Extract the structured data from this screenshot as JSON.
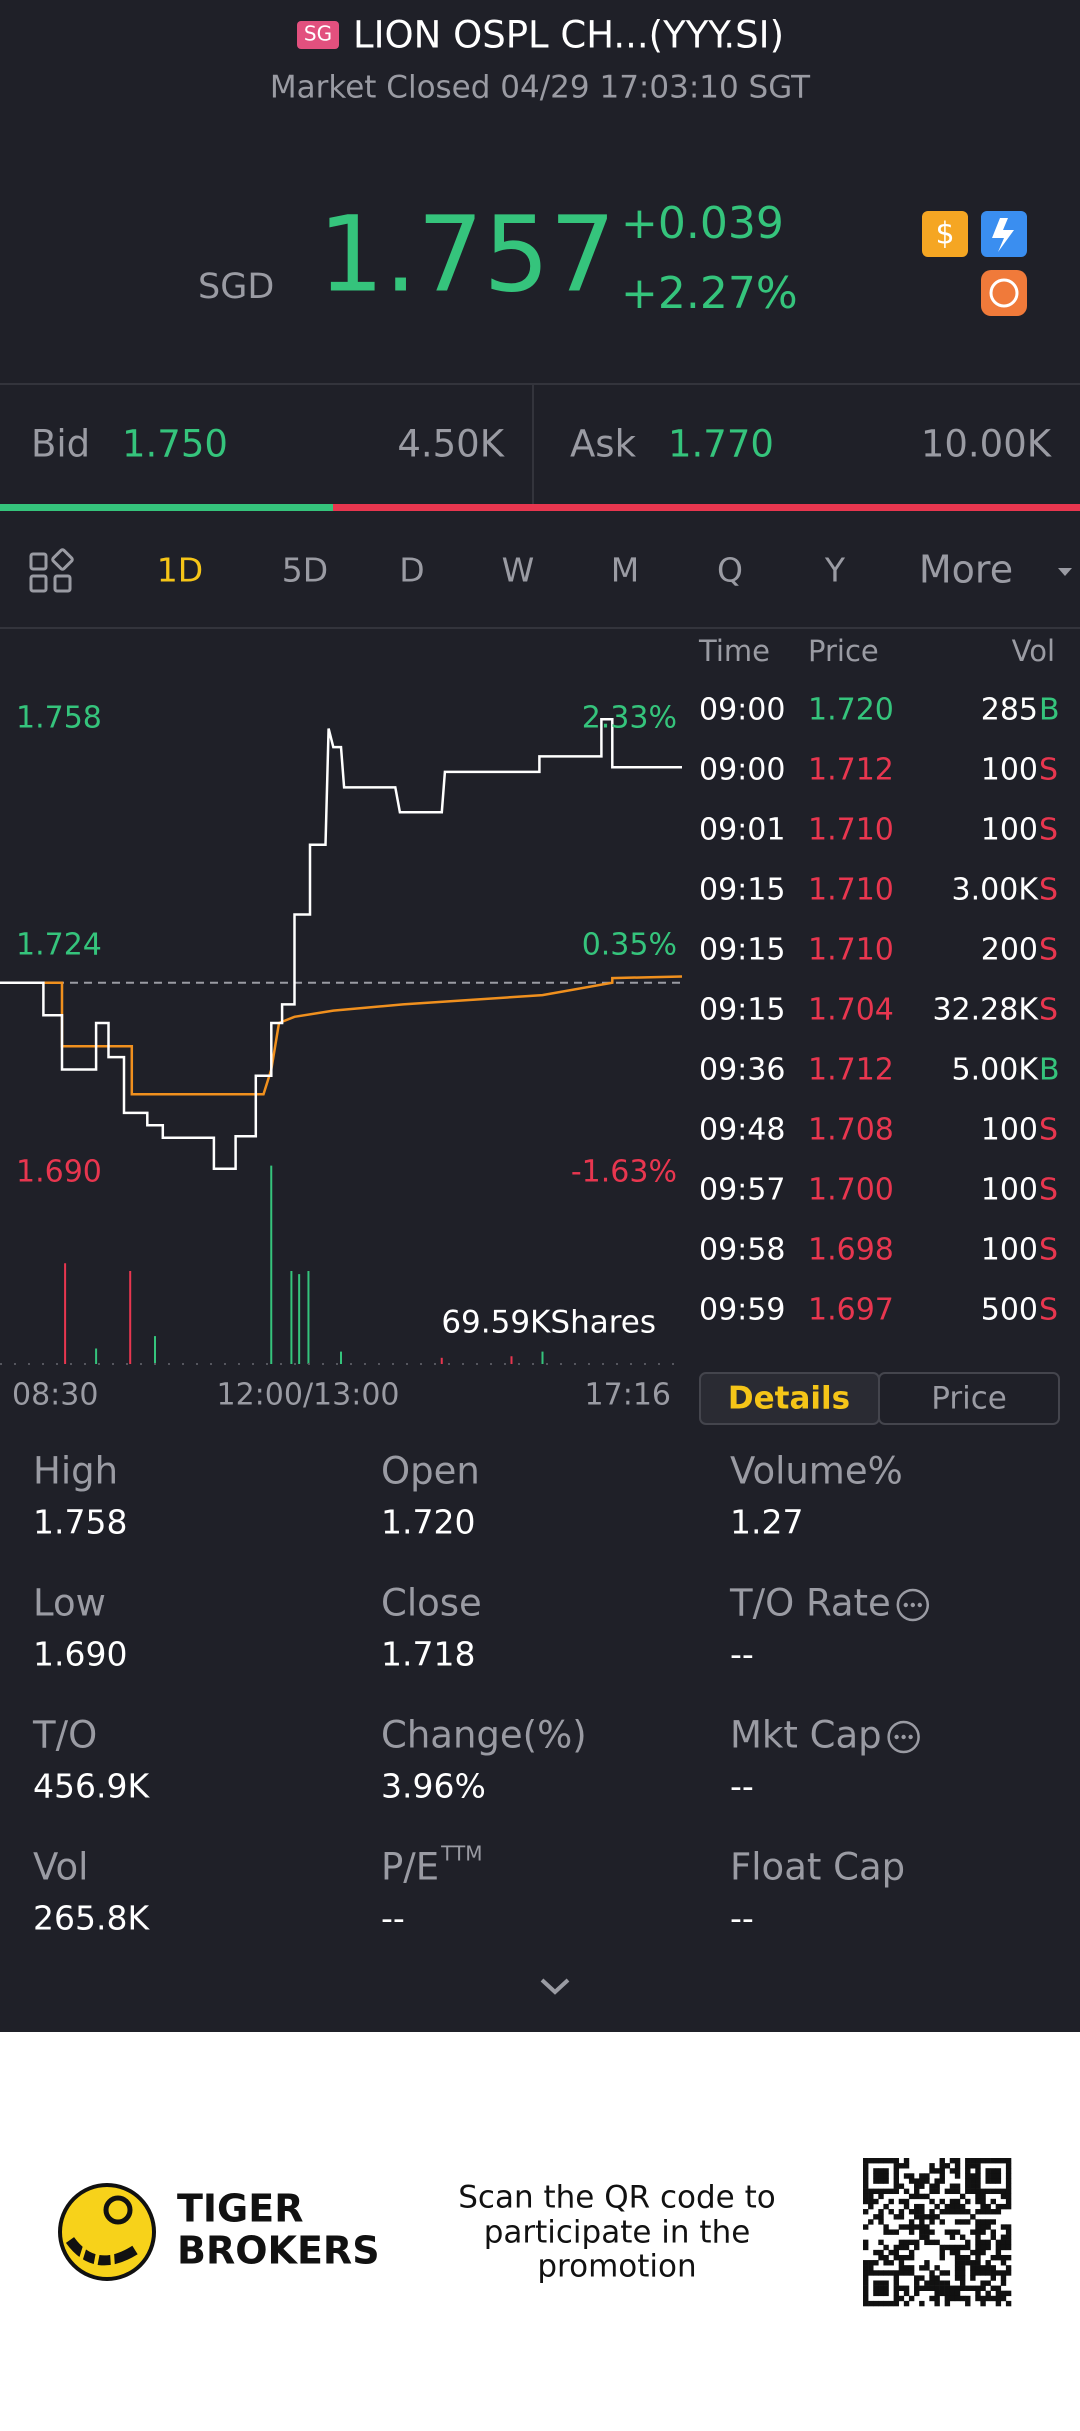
{
  "header": {
    "badge": "SG",
    "title": "LION OSPL CH...(YYY.SI)",
    "subtitle": "Market Closed 04/29 17:03:10 SGT"
  },
  "quote": {
    "currency": "SGD",
    "price": "1.757",
    "change": "+0.039",
    "change_pct": "+2.27%"
  },
  "bid": {
    "label": "Bid",
    "price": "1.750",
    "size": "4.50K"
  },
  "ask": {
    "label": "Ask",
    "price": "1.770",
    "size": "10.00K"
  },
  "tabs": [
    "1D",
    "5D",
    "D",
    "W",
    "M",
    "Q",
    "Y",
    "More"
  ],
  "chart": {
    "price_high": "1.758",
    "pct_high": "2.33%",
    "price_mid": "1.724",
    "pct_mid": "0.35%",
    "price_low": "1.690",
    "pct_low": "-1.63%",
    "volume": "69.59KShares",
    "x_labels": [
      "08:30",
      "12:00/13:00",
      "17:16"
    ]
  },
  "trades": {
    "headers": [
      "Time",
      "Price",
      "Vol"
    ],
    "rows": [
      {
        "time": "09:00",
        "price": "1.720",
        "vol": "285",
        "side": "B",
        "price_color": "#35c47c"
      },
      {
        "time": "09:00",
        "price": "1.712",
        "vol": "100",
        "side": "S",
        "price_color": "#e8364f"
      },
      {
        "time": "09:01",
        "price": "1.710",
        "vol": "100",
        "side": "S",
        "price_color": "#e8364f"
      },
      {
        "time": "09:15",
        "price": "1.710",
        "vol": "3.00K",
        "side": "S",
        "price_color": "#e8364f"
      },
      {
        "time": "09:15",
        "price": "1.710",
        "vol": "200",
        "side": "S",
        "price_color": "#e8364f"
      },
      {
        "time": "09:15",
        "price": "1.704",
        "vol": "32.28K",
        "side": "S",
        "price_color": "#e8364f"
      },
      {
        "time": "09:36",
        "price": "1.712",
        "vol": "5.00K",
        "side": "B",
        "price_color": "#e8364f"
      },
      {
        "time": "09:48",
        "price": "1.708",
        "vol": "100",
        "side": "S",
        "price_color": "#e8364f"
      },
      {
        "time": "09:57",
        "price": "1.700",
        "vol": "100",
        "side": "S",
        "price_color": "#e8364f"
      },
      {
        "time": "09:58",
        "price": "1.698",
        "vol": "100",
        "side": "S",
        "price_color": "#e8364f"
      },
      {
        "time": "09:59",
        "price": "1.697",
        "vol": "500",
        "side": "S",
        "price_color": "#e8364f"
      }
    ]
  },
  "buttons": [
    "Details",
    "Price"
  ],
  "stats": [
    {
      "label": "High",
      "value": "1.758"
    },
    {
      "label": "Open",
      "value": "1.720"
    },
    {
      "label": "Volume%",
      "value": "1.27"
    },
    {
      "label": "Low",
      "value": "1.690"
    },
    {
      "label": "Close",
      "value": "1.718"
    },
    {
      "label": "T/O Rate",
      "value": "--",
      "info": true
    },
    {
      "label": "T/O",
      "value": "456.9K"
    },
    {
      "label": "Change(%)",
      "value": "3.96%"
    },
    {
      "label": "Mkt Cap",
      "value": "--",
      "info": true
    },
    {
      "label": "Vol",
      "value": "265.8K"
    },
    {
      "label": "P/E",
      "sup": "TTM",
      "value": "--"
    },
    {
      "label": "Float Cap",
      "value": "--"
    }
  ],
  "footer": {
    "brand": [
      "TIGER",
      "BROKERS"
    ],
    "promo": [
      "Scan the QR code to",
      "participate in the",
      "promotion"
    ]
  }
}
